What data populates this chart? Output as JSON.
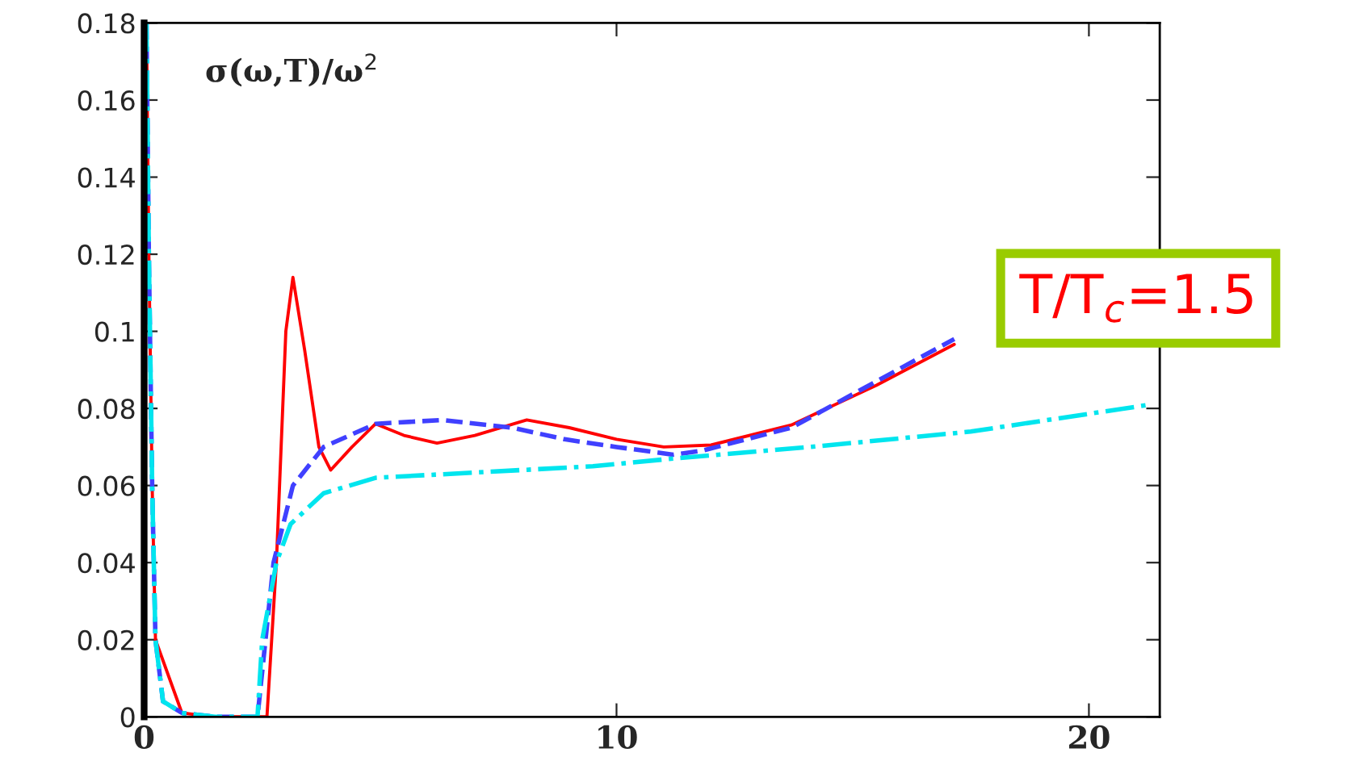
{
  "chart_data": {
    "type": "line",
    "annotations": [
      "σ(ω,T)/ω$^{2}$",
      "T/T$_{c}$=1.5"
    ],
    "xlim": [
      0,
      21.5
    ],
    "xticks": [
      0,
      10,
      20
    ],
    "ylim": [
      0,
      0.18
    ],
    "yticks": [
      0,
      0.02,
      0.04,
      0.06,
      0.08,
      {
        "value": 0.1,
        "label": "0.1"
      },
      0.12,
      0.14,
      0.16,
      0.18
    ],
    "grid": false,
    "legend": false,
    "marker": "none",
    "series": [
      {
        "color": "#ff0000",
        "line_style": "solid",
        "x": [
          0.05,
          0.1,
          0.17,
          0.24,
          0.8,
          1.5,
          2.6,
          2.8,
          3.0,
          3.15,
          3.4,
          3.7,
          3.95,
          4.4,
          4.9,
          5.5,
          6.2,
          7.0,
          8.1,
          9.0,
          10.0,
          11.0,
          12.0,
          13.7,
          15.5,
          17.15
        ],
        "values": [
          0.18,
          0.12,
          0.06,
          0.02,
          0.001,
          0,
          0,
          0.04,
          0.1,
          0.114,
          0.095,
          0.07,
          0.064,
          0.07,
          0.076,
          0.073,
          0.071,
          0.073,
          0.077,
          0.075,
          0.072,
          0.07,
          0.0705,
          0.0757,
          0.086,
          0.0966
        ]
      },
      {
        "color": "#4040ff",
        "line_style": "dotted",
        "x": [
          0.05,
          0.1,
          0.17,
          0.24,
          0.4,
          0.8,
          1.5,
          2.4,
          2.74,
          3.15,
          3.8,
          4.9,
          6.3,
          7.8,
          8.9,
          10.0,
          11.2,
          11.8,
          13.7,
          15.5,
          17.15
        ],
        "values": [
          0.18,
          0.12,
          0.06,
          0.02,
          0.004,
          0.001,
          0,
          0,
          0.04,
          0.06,
          0.07,
          0.076,
          0.077,
          0.075,
          0.072,
          0.07,
          0.068,
          0.069,
          0.075,
          0.087,
          0.098
        ]
      },
      {
        "color": "#00e5ee",
        "line_style": "dashed",
        "x": [
          0.05,
          0.1,
          0.17,
          0.24,
          0.4,
          0.8,
          1.5,
          2.4,
          2.5,
          2.8,
          3.1,
          3.8,
          4.9,
          7.2,
          9.5,
          11.2,
          14.1,
          17.5,
          21.3
        ],
        "values": [
          0.18,
          0.12,
          0.06,
          0.02,
          0.004,
          0.001,
          0,
          0,
          0.02,
          0.04,
          0.05,
          0.058,
          0.062,
          0.0635,
          0.065,
          0.067,
          0.07,
          0.074,
          0.081
        ]
      }
    ]
  }
}
